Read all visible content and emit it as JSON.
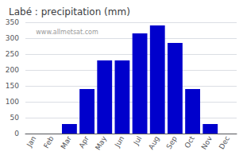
{
  "chart_data": {
    "type": "bar",
    "title": "Labé : precipitation (mm)",
    "categories": [
      "Jan",
      "Feb",
      "Mar",
      "Apr",
      "May",
      "Jun",
      "Jul",
      "Aug",
      "Sep",
      "Oct",
      "Nov",
      "Dec"
    ],
    "values": [
      0,
      0,
      30,
      140,
      230,
      230,
      315,
      340,
      285,
      140,
      30,
      0
    ],
    "color": "#0000cc",
    "ylim": [
      0,
      350
    ],
    "yticks": [
      0,
      50,
      100,
      150,
      200,
      250,
      300,
      350
    ],
    "grid": true,
    "annotations": [
      "www.allmetsat.com"
    ]
  }
}
